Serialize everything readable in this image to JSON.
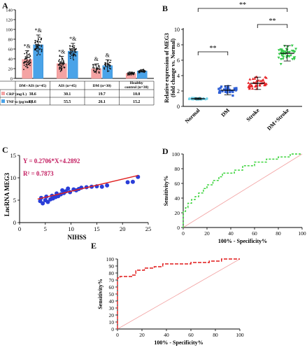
{
  "chart_data": [
    {
      "panel": "A",
      "type": "bar",
      "ytick_labels": [
        "0",
        "20",
        "40",
        "60",
        "80",
        "100",
        "120",
        "140"
      ],
      "ylim": [
        0,
        140
      ],
      "grid": false,
      "categories": [
        "DM+AIS (n=45)",
        "AIS (n=45)",
        "DM (n=30)",
        "Healthy control (n=30)"
      ],
      "series": [
        {
          "name": "CRP (mg/L)",
          "color": "#f4a3a3",
          "values": [
            38.6,
            30.1,
            19.7,
            10.0
          ],
          "sd": [
            18,
            15,
            10,
            3
          ]
        },
        {
          "name": "TNF-α (pg/mL)",
          "color": "#4aa3e8",
          "values": [
            68.6,
            55.5,
            26.1,
            15.2
          ],
          "sd": [
            20,
            16,
            12,
            3
          ]
        }
      ],
      "annotations": [
        "*&",
        "*&",
        "*&",
        "*&",
        "&",
        "&"
      ],
      "table": {
        "headers": [
          "DM+AIS (n=45)",
          "AIS (n=45)",
          "DM (n=30)",
          "Healthy control (n=30)"
        ],
        "rows": [
          {
            "label": "CRP (mg/L)",
            "values": [
              "38.6",
              "30.1",
              "19.7",
              "10.0"
            ]
          },
          {
            "label": "TNF-α (pg/mL)",
            "values": [
              "68.6",
              "55.5",
              "26.1",
              "15.2"
            ]
          }
        ]
      }
    },
    {
      "panel": "B",
      "type": "scatter",
      "ylabel": "Relative expression of MEG3\n(fold change vs. Normal)",
      "ylim": [
        0,
        10
      ],
      "ytick_labels": [
        "0",
        "2",
        "4",
        "6",
        "8",
        "10"
      ],
      "categories": [
        "Normal",
        "DM",
        "Stroke",
        "DM+Stroke"
      ],
      "series": [
        {
          "name": "Normal",
          "color": "#6fd3ea",
          "mean": 1.0,
          "sd": 0.1
        },
        {
          "name": "DM",
          "color": "#2e5fd6",
          "mean": 2.1,
          "sd": 0.6
        },
        {
          "name": "Stroke",
          "color": "#e8262a",
          "mean": 3.0,
          "sd": 0.8
        },
        {
          "name": "DM+Stroke",
          "color": "#34c94a",
          "mean": 6.9,
          "sd": 1.0
        }
      ],
      "significance": [
        "**",
        "**",
        "**"
      ]
    },
    {
      "panel": "C",
      "type": "scatter",
      "xlabel": "NIHSS",
      "ylabel": "LncRNA MEG3",
      "xlim": [
        0,
        25
      ],
      "ylim": [
        0,
        15
      ],
      "xtick_labels": [
        "0",
        "5",
        "10",
        "15",
        "20",
        "25"
      ],
      "ytick_labels": [
        "0",
        "5",
        "10",
        "15"
      ],
      "equation": "Y = 0.2706*X+4.2892",
      "r2": "R² = 0.7873",
      "slope": 0.2706,
      "intercept": 4.2892,
      "point_color": "#2a3ed8",
      "line_color": "#e02020",
      "points": [
        [
          4,
          4.8
        ],
        [
          4.2,
          5.5
        ],
        [
          4.5,
          4.3
        ],
        [
          5,
          5.0
        ],
        [
          5.2,
          5.8
        ],
        [
          5.5,
          4.6
        ],
        [
          6,
          5.2
        ],
        [
          6.3,
          6.0
        ],
        [
          6.5,
          5.4
        ],
        [
          7,
          5.7
        ],
        [
          7.2,
          6.5
        ],
        [
          7.5,
          5.9
        ],
        [
          8,
          6.3
        ],
        [
          8.3,
          7.2
        ],
        [
          8.6,
          6.6
        ],
        [
          9,
          7.0
        ],
        [
          9.4,
          7.6
        ],
        [
          9.8,
          6.8
        ],
        [
          10.5,
          7.4
        ],
        [
          11,
          7.2
        ],
        [
          11.5,
          7.5
        ],
        [
          12,
          7.8
        ],
        [
          13,
          7.9
        ],
        [
          14,
          8.0
        ],
        [
          15,
          8.1
        ],
        [
          16,
          8.0
        ],
        [
          17,
          8.3
        ],
        [
          21,
          9.0
        ],
        [
          22,
          9.1
        ],
        [
          23,
          10.2
        ]
      ]
    },
    {
      "panel": "D",
      "type": "line",
      "xlabel": "100% - Specificity%",
      "ylabel": "Sensitivity%",
      "xlim": [
        0,
        100
      ],
      "ylim": [
        0,
        100
      ],
      "xtick_labels": [
        "0",
        "20",
        "40",
        "60",
        "80",
        "100"
      ],
      "ytick_labels": [
        "0",
        "20",
        "40",
        "60",
        "80",
        "100"
      ],
      "roc_color": "#2fd12f",
      "diagonal_color": "#f2a0a0",
      "roc_points": [
        [
          0,
          0
        ],
        [
          0,
          22
        ],
        [
          2,
          22
        ],
        [
          2,
          27
        ],
        [
          4,
          27
        ],
        [
          4,
          33
        ],
        [
          7,
          33
        ],
        [
          7,
          38
        ],
        [
          10,
          38
        ],
        [
          10,
          42
        ],
        [
          13,
          42
        ],
        [
          13,
          47
        ],
        [
          17,
          47
        ],
        [
          17,
          53
        ],
        [
          20,
          53
        ],
        [
          20,
          58
        ],
        [
          25,
          58
        ],
        [
          25,
          64
        ],
        [
          30,
          64
        ],
        [
          30,
          69
        ],
        [
          33,
          69
        ],
        [
          33,
          74
        ],
        [
          43,
          74
        ],
        [
          43,
          78
        ],
        [
          50,
          78
        ],
        [
          50,
          84
        ],
        [
          60,
          84
        ],
        [
          60,
          89
        ],
        [
          70,
          89
        ],
        [
          70,
          93
        ],
        [
          80,
          93
        ],
        [
          80,
          96
        ],
        [
          90,
          96
        ],
        [
          90,
          100
        ],
        [
          100,
          100
        ]
      ]
    },
    {
      "panel": "E",
      "type": "line",
      "xlabel": "100% - Specificity%",
      "ylabel": "Sensitivity%",
      "xlim": [
        0,
        100
      ],
      "ylim": [
        0,
        100
      ],
      "xtick_labels": [
        "0",
        "20",
        "40",
        "60",
        "80",
        "100"
      ],
      "ytick_labels": [
        "0",
        "10",
        "20",
        "30",
        "40",
        "50",
        "60",
        "70",
        "80",
        "90",
        "100"
      ],
      "roc_color": "#e01818",
      "diagonal_color": "#f2a0a0",
      "roc_points": [
        [
          0,
          0
        ],
        [
          0,
          73
        ],
        [
          2,
          73
        ],
        [
          2,
          75
        ],
        [
          12,
          75
        ],
        [
          12,
          77
        ],
        [
          15,
          77
        ],
        [
          15,
          84
        ],
        [
          22,
          84
        ],
        [
          22,
          87
        ],
        [
          30,
          87
        ],
        [
          30,
          89
        ],
        [
          37,
          89
        ],
        [
          37,
          93
        ],
        [
          60,
          93
        ],
        [
          60,
          95
        ],
        [
          75,
          95
        ],
        [
          75,
          97
        ],
        [
          85,
          97
        ],
        [
          85,
          100
        ],
        [
          100,
          100
        ]
      ]
    }
  ],
  "panels": {
    "A": {
      "letter": "A"
    },
    "B": {
      "letter": "B"
    },
    "C": {
      "letter": "C"
    },
    "D": {
      "letter": "D"
    },
    "E": {
      "letter": "E"
    }
  }
}
